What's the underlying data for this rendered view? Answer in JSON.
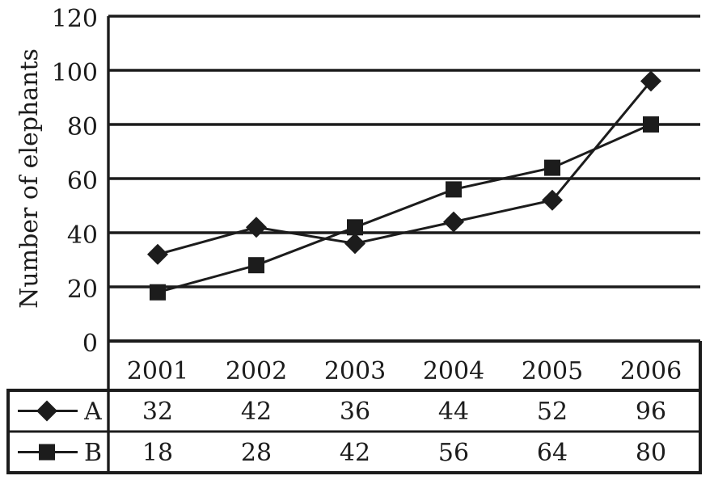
{
  "chart_data": {
    "type": "line",
    "title": "",
    "ylabel": "Number of elephants",
    "xlabel": "",
    "categories": [
      "2001",
      "2002",
      "2003",
      "2004",
      "2005",
      "2006"
    ],
    "series": [
      {
        "name": "A",
        "marker": "diamond",
        "values": [
          32,
          42,
          36,
          44,
          52,
          96
        ]
      },
      {
        "name": "B",
        "marker": "square",
        "values": [
          18,
          28,
          42,
          56,
          64,
          80
        ]
      }
    ],
    "yticks": [
      0,
      20,
      40,
      60,
      80,
      100,
      120
    ],
    "ylim": [
      0,
      120
    ],
    "grid": "horizontal",
    "legend_position": "table-rows-left",
    "ink_color": "#1c1c1c",
    "background_color": "#ffffff"
  }
}
